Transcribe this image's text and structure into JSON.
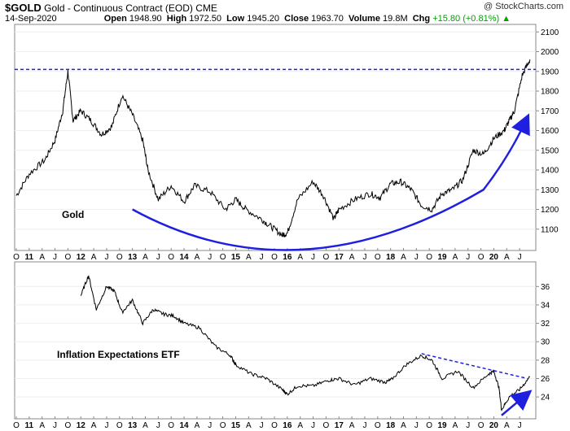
{
  "header": {
    "symbol": "$GOLD",
    "name": "Gold - Continuous Contract (EOD)",
    "exchange": "CME",
    "date": "14-Sep-2020",
    "open_label": "Open",
    "open": "1948.90",
    "high_label": "High",
    "high": "1972.50",
    "low_label": "Low",
    "low": "1945.20",
    "close_label": "Close",
    "close": "1963.70",
    "volume_label": "Volume",
    "volume": "19.8M",
    "chg_label": "Chg",
    "chg": "+15.80 (+0.81%)",
    "chg_arrow": "▲",
    "watermark": "@ StockCharts.com"
  },
  "chart_data": [
    {
      "type": "line",
      "title": "Gold",
      "ylim": [
        1000,
        2130
      ],
      "yticks": [
        "1100",
        "1200",
        "1300",
        "1400",
        "1500",
        "1600",
        "1700",
        "1800",
        "1900",
        "2000",
        "2100"
      ],
      "ytick_values": [
        1100,
        1200,
        1300,
        1400,
        1500,
        1600,
        1700,
        1800,
        1900,
        2000,
        2100
      ],
      "x": [
        2010.75,
        2011.0,
        2011.3,
        2011.5,
        2011.65,
        2011.75,
        2011.85,
        2012.0,
        2012.2,
        2012.4,
        2012.6,
        2012.8,
        2013.0,
        2013.2,
        2013.3,
        2013.5,
        2013.75,
        2014.0,
        2014.2,
        2014.5,
        2014.8,
        2015.0,
        2015.2,
        2015.5,
        2015.7,
        2015.9,
        2016.0,
        2016.2,
        2016.5,
        2016.7,
        2016.9,
        2017.0,
        2017.3,
        2017.6,
        2017.8,
        2018.0,
        2018.2,
        2018.4,
        2018.6,
        2018.8,
        2019.0,
        2019.2,
        2019.4,
        2019.6,
        2019.8,
        2020.0,
        2020.2,
        2020.3,
        2020.4,
        2020.55,
        2020.7
      ],
      "values": [
        1270,
        1380,
        1450,
        1550,
        1700,
        1900,
        1650,
        1700,
        1650,
        1580,
        1620,
        1780,
        1680,
        1550,
        1400,
        1250,
        1320,
        1240,
        1320,
        1290,
        1200,
        1250,
        1200,
        1150,
        1110,
        1070,
        1080,
        1250,
        1340,
        1270,
        1150,
        1200,
        1250,
        1280,
        1260,
        1330,
        1340,
        1300,
        1220,
        1200,
        1280,
        1300,
        1350,
        1500,
        1480,
        1560,
        1600,
        1650,
        1700,
        1880,
        1960
      ],
      "ref_line": 1910,
      "ref_line_color": "#1f1fe0",
      "label": "Gold"
    },
    {
      "type": "line",
      "title": "Inflation Expectations ETF",
      "ylim": [
        21.8,
        38.5
      ],
      "yticks": [
        "24",
        "26",
        "28",
        "30",
        "32",
        "34",
        "36"
      ],
      "ytick_values": [
        24,
        26,
        28,
        30,
        32,
        34,
        36
      ],
      "x": [
        2012.0,
        2012.15,
        2012.3,
        2012.5,
        2012.65,
        2012.8,
        2013.0,
        2013.2,
        2013.4,
        2013.6,
        2013.8,
        2014.0,
        2014.3,
        2014.6,
        2014.9,
        2015.0,
        2015.3,
        2015.6,
        2015.9,
        2016.0,
        2016.2,
        2016.5,
        2016.8,
        2017.0,
        2017.3,
        2017.6,
        2017.9,
        2018.0,
        2018.3,
        2018.6,
        2018.8,
        2019.0,
        2019.3,
        2019.6,
        2019.9,
        2020.0,
        2020.1,
        2020.15,
        2020.3,
        2020.5,
        2020.7
      ],
      "values": [
        35.0,
        37.2,
        33.5,
        36.0,
        35.5,
        33.2,
        34.5,
        32.0,
        33.5,
        33.0,
        32.8,
        32.0,
        31.5,
        29.5,
        28.5,
        27.5,
        26.5,
        26.0,
        24.8,
        24.3,
        25.2,
        25.2,
        25.8,
        26.0,
        25.3,
        26.0,
        25.6,
        25.8,
        27.5,
        28.5,
        28.0,
        26.0,
        26.8,
        25.0,
        26.5,
        26.8,
        25.0,
        22.6,
        24.0,
        24.8,
        26.2
      ],
      "label": "Inflation Expectations ETF"
    }
  ],
  "x_axis": {
    "labels": [
      "O",
      "11",
      "A",
      "J",
      "O",
      "12",
      "A",
      "J",
      "O",
      "13",
      "A",
      "J",
      "O",
      "14",
      "A",
      "J",
      "O",
      "15",
      "A",
      "J",
      "O",
      "16",
      "A",
      "J",
      "O",
      "17",
      "A",
      "J",
      "O",
      "18",
      "A",
      "J",
      "O",
      "19",
      "A",
      "J",
      "O",
      "20",
      "A",
      "J"
    ]
  },
  "colors": {
    "price": "#000000",
    "accent": "#1f1fe0",
    "up": "#00a000"
  }
}
